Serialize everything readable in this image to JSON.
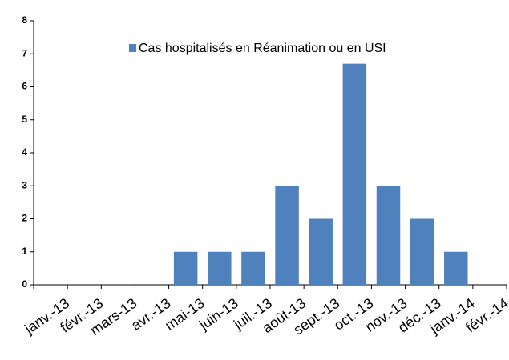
{
  "chart_data": {
    "type": "bar",
    "categories": [
      "janv.-13",
      "févr.-13",
      "mars-13",
      "avr.-13",
      "mai-13",
      "juin-13",
      "juil.-13",
      "août-13",
      "sept.-13",
      "oct.-13",
      "nov.-13",
      "déc.-13",
      "janv.-14",
      "févr.-14"
    ],
    "series": [
      {
        "name": "Cas hospitalisés en Réanimation ou en USI",
        "color": "#4f81bd",
        "values": [
          0,
          0,
          0,
          0,
          1,
          1,
          1,
          3,
          2,
          6.7,
          3,
          2,
          1,
          0
        ]
      }
    ],
    "ylim": [
      0,
      8
    ],
    "yticks": [
      0,
      1,
      2,
      3,
      4,
      5,
      6,
      7,
      8
    ],
    "grid": false,
    "legend": "top"
  }
}
